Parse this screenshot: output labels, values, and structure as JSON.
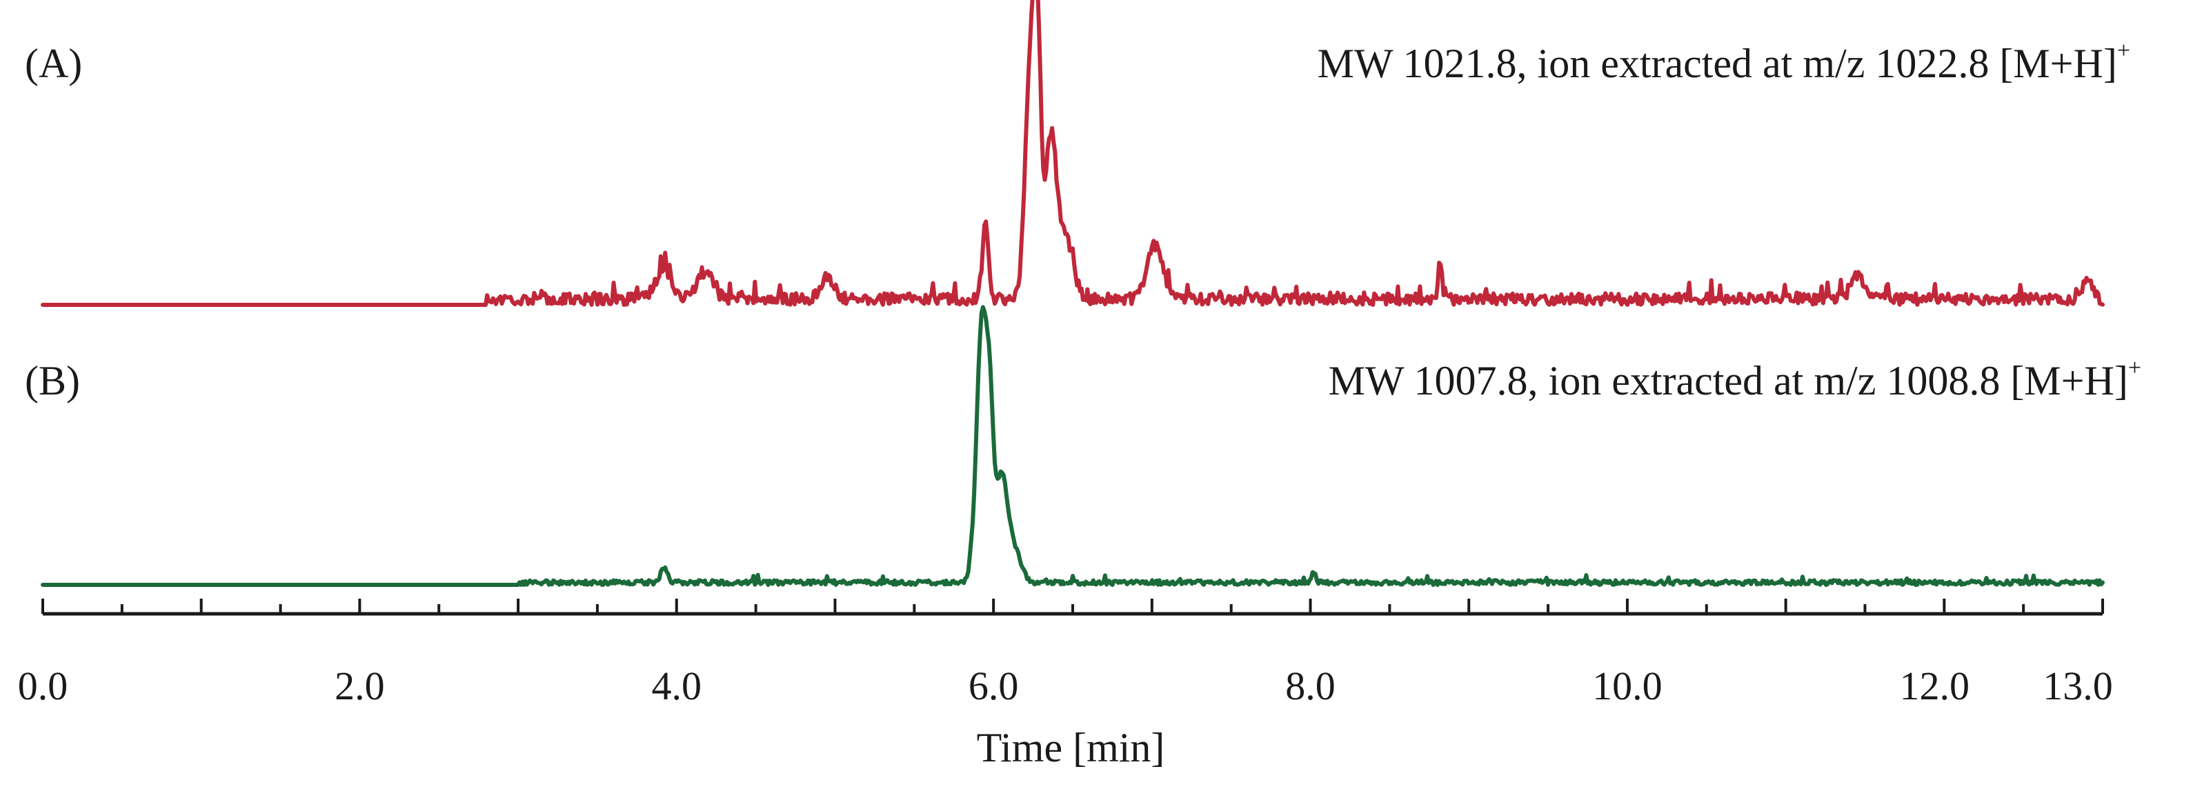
{
  "chart_data": {
    "type": "line",
    "xlabel": "Time [min]",
    "xlim": [
      0.0,
      13.0
    ],
    "x_tick_labels": [
      "0.0",
      "2.0",
      "4.0",
      "6.0",
      "8.0",
      "10.0",
      "12.0",
      "13.0"
    ],
    "x_tick_values": [
      0,
      2,
      4,
      6,
      8,
      10,
      12,
      13
    ],
    "minor_tick_step": 0.5,
    "grid": false,
    "ylabel": "",
    "series": [
      {
        "panel": "(A)",
        "annotation": "MW 1021.8, ion extracted at m/z 1022.8 [M+H]",
        "annotation_superscript": "+",
        "color": "#c0283a",
        "apex_time": 6.28,
        "peaks": [
          {
            "t": 3.92,
            "h": 0.08,
            "w": 0.05
          },
          {
            "t": 4.18,
            "h": 0.07,
            "w": 0.05
          },
          {
            "t": 4.95,
            "h": 0.06,
            "w": 0.04
          },
          {
            "t": 5.95,
            "h": 0.2,
            "w": 0.018
          },
          {
            "t": 6.24,
            "h": 0.68,
            "w": 0.035
          },
          {
            "t": 6.28,
            "h": 0.42,
            "w": 0.02
          },
          {
            "t": 6.36,
            "h": 0.4,
            "w": 0.035
          },
          {
            "t": 6.45,
            "h": 0.16,
            "w": 0.05
          },
          {
            "t": 7.02,
            "h": 0.14,
            "w": 0.05
          },
          {
            "t": 8.82,
            "h": 0.1,
            "w": 0.012
          },
          {
            "t": 11.45,
            "h": 0.06,
            "w": 0.04
          },
          {
            "t": 12.9,
            "h": 0.05,
            "w": 0.03
          }
        ],
        "noise_start": 2.8,
        "noise_level": 0.03
      },
      {
        "panel": "(B)",
        "annotation": "MW 1007.8, ion extracted at m/z 1008.8 [M+H]",
        "annotation_superscript": "+",
        "color": "#1b6a3a",
        "apex_time": 5.97,
        "peaks": [
          {
            "t": 3.92,
            "h": 0.04,
            "w": 0.02
          },
          {
            "t": 5.93,
            "h": 0.7,
            "w": 0.035
          },
          {
            "t": 5.98,
            "h": 0.25,
            "w": 0.02
          },
          {
            "t": 6.05,
            "h": 0.28,
            "w": 0.04
          },
          {
            "t": 6.14,
            "h": 0.07,
            "w": 0.04
          },
          {
            "t": 8.02,
            "h": 0.03,
            "w": 0.012
          }
        ],
        "noise_start": 3.0,
        "noise_level": 0.012
      }
    ]
  }
}
